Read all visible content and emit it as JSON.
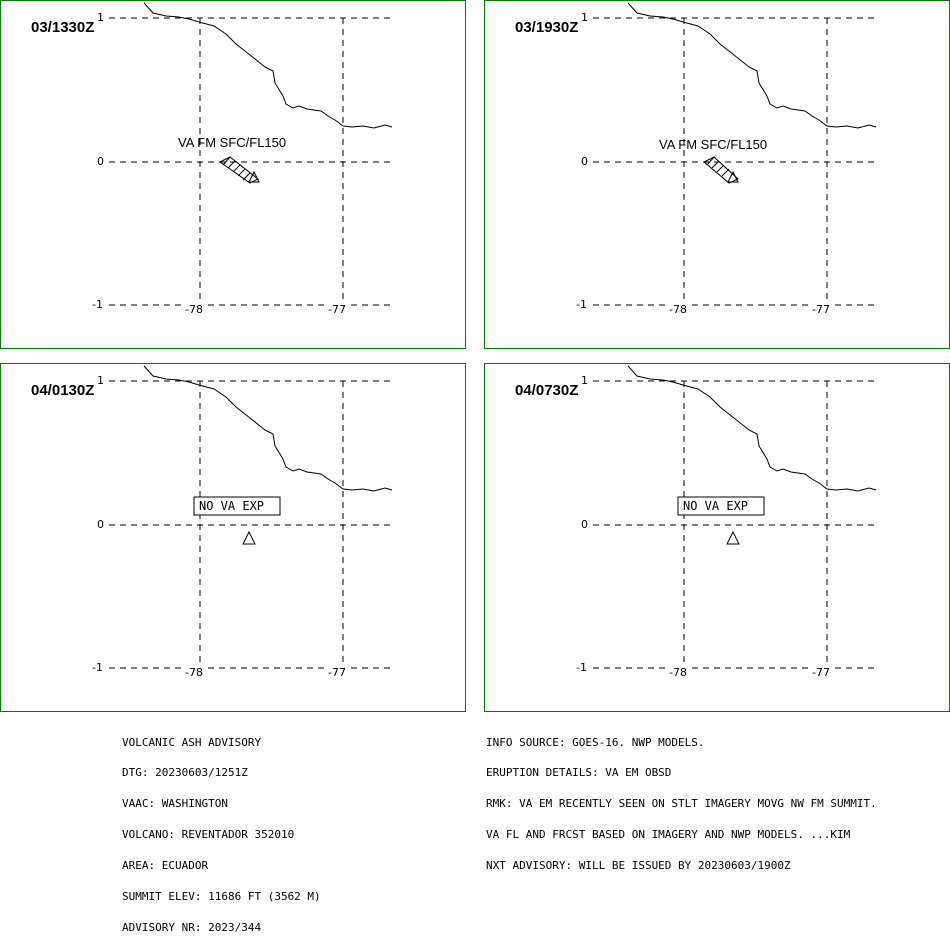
{
  "panels": [
    {
      "time": "03/1330Z",
      "label": "VA FM SFC/FL150",
      "mode": "plume"
    },
    {
      "time": "03/1930Z",
      "label": "VA FM SFC/FL150",
      "mode": "plume"
    },
    {
      "time": "04/0130Z",
      "label": "NO VA EXP",
      "mode": "none"
    },
    {
      "time": "04/0730Z",
      "label": "NO VA EXP",
      "mode": "none"
    }
  ],
  "axis": {
    "lat_labels": [
      "1",
      "0",
      "-1"
    ],
    "lon_labels": [
      "-78",
      "-77"
    ]
  },
  "advisory": {
    "left_lines": [
      "VOLCANIC ASH ADVISORY",
      "DTG: 20230603/1251Z",
      "VAAC: WASHINGTON",
      "VOLCANO: REVENTADOR 352010",
      "AREA: ECUADOR",
      "SUMMIT ELEV: 11686 FT (3562 M)",
      "ADVISORY NR: 2023/344"
    ],
    "right_lines": [
      "INFO SOURCE: GOES-16. NWP MODELS.",
      "ERUPTION DETAILS: VA EM OBSD",
      "RMK: VA EM RECENTLY SEEN ON STLT IMAGERY MOVG NW FM SUMMIT.",
      "VA FL AND FRCST BASED ON IMAGERY AND NWP MODELS. ...KIM",
      "NXT ADVISORY: WILL BE ISSUED BY 20230603/1900Z"
    ]
  },
  "colors": {
    "frame": "#008000",
    "ink": "#000000"
  }
}
